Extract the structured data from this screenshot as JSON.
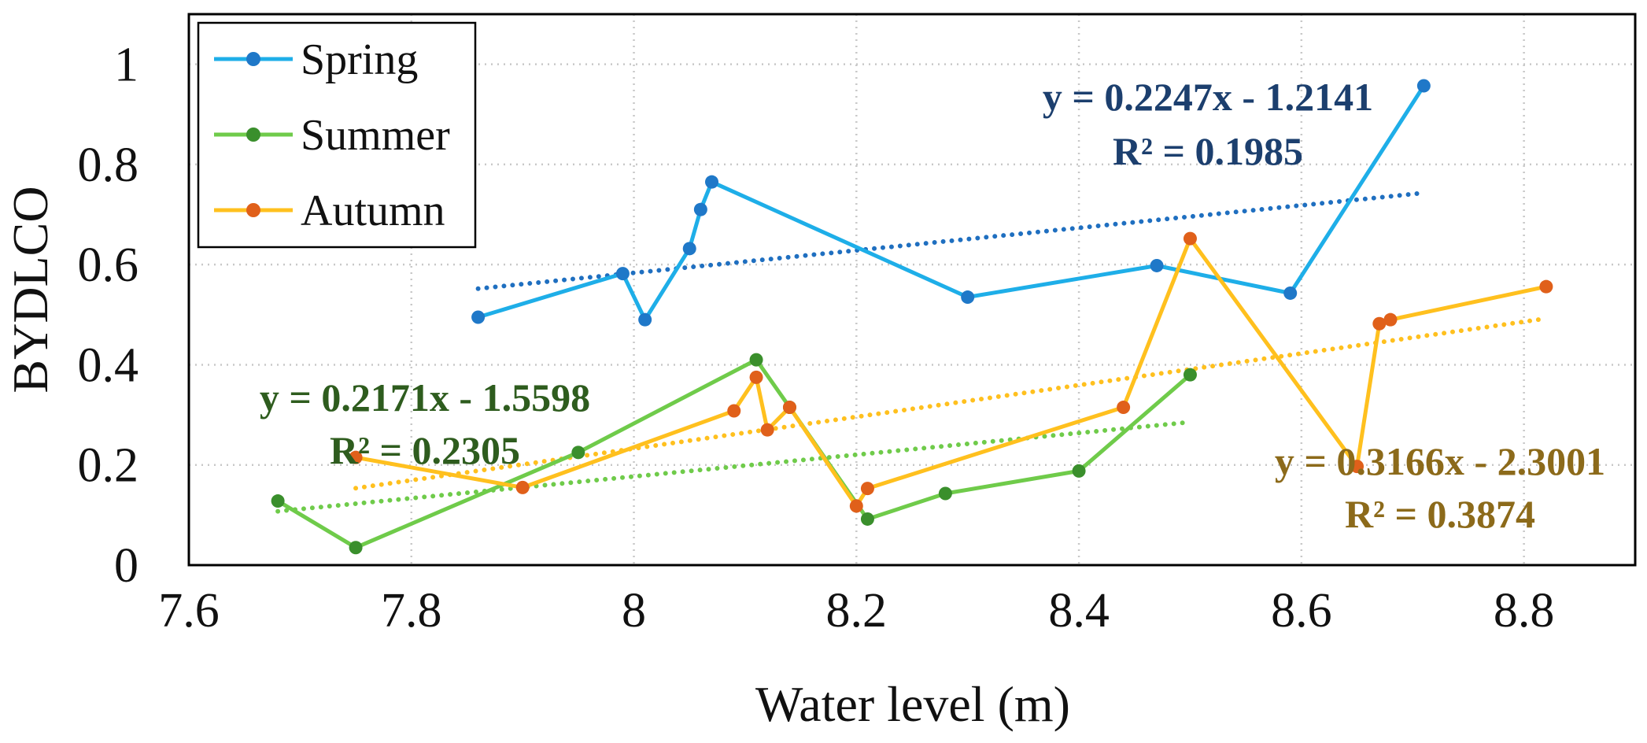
{
  "chart_data": {
    "type": "line",
    "xlabel": "Water level (m)",
    "ylabel": "BYDLCO",
    "xlim": [
      7.6,
      8.9
    ],
    "ylim": [
      0,
      1.1
    ],
    "x_ticks": [
      "7.6",
      "7.8",
      "8",
      "8.2",
      "8.4",
      "8.6",
      "8.8"
    ],
    "y_ticks": [
      "0",
      "0.2",
      "0.4",
      "0.6",
      "0.8",
      "1"
    ],
    "grid": true,
    "legend_position": "top-left",
    "series": [
      {
        "name": "Spring",
        "line_color": "#1EAEE8",
        "marker_color": "#1F78C8",
        "trend_color": "#1F6FC0",
        "points": [
          [
            7.86,
            0.495
          ],
          [
            7.99,
            0.582
          ],
          [
            8.01,
            0.49
          ],
          [
            8.05,
            0.632
          ],
          [
            8.06,
            0.71
          ],
          [
            8.07,
            0.765
          ],
          [
            8.3,
            0.535
          ],
          [
            8.47,
            0.598
          ],
          [
            8.59,
            0.543
          ],
          [
            8.71,
            0.957
          ]
        ],
        "trend": {
          "slope": 0.2247,
          "intercept": -1.2141,
          "x_range": [
            7.86,
            8.71
          ]
        },
        "equation": "y = 0.2247x - 1.2141",
        "r2": "R² = 0.1985",
        "label_color": "#1C3F6E"
      },
      {
        "name": "Summer",
        "line_color": "#6FCB4A",
        "marker_color": "#3A8F2C",
        "trend_color": "#6FCB4A",
        "points": [
          [
            7.68,
            0.128
          ],
          [
            7.75,
            0.035
          ],
          [
            7.95,
            0.225
          ],
          [
            8.11,
            0.41
          ],
          [
            8.14,
            0.315
          ],
          [
            8.21,
            0.092
          ],
          [
            8.28,
            0.143
          ],
          [
            8.4,
            0.188
          ],
          [
            8.5,
            0.38
          ]
        ],
        "trend": {
          "slope": 0.2171,
          "intercept": -1.5598,
          "x_range": [
            7.68,
            8.5
          ]
        },
        "equation": "y = 0.2171x - 1.5598",
        "r2": "R² = 0.2305",
        "label_color": "#2E5C1E"
      },
      {
        "name": "Autumn",
        "line_color": "#FFC01E",
        "marker_color": "#E0601A",
        "trend_color": "#FFC01E",
        "points": [
          [
            7.75,
            0.215
          ],
          [
            7.9,
            0.155
          ],
          [
            8.09,
            0.308
          ],
          [
            8.11,
            0.375
          ],
          [
            8.12,
            0.27
          ],
          [
            8.14,
            0.315
          ],
          [
            8.2,
            0.118
          ],
          [
            8.21,
            0.153
          ],
          [
            8.44,
            0.315
          ],
          [
            8.5,
            0.652
          ],
          [
            8.65,
            0.197
          ],
          [
            8.67,
            0.482
          ],
          [
            8.68,
            0.49
          ],
          [
            8.82,
            0.556
          ]
        ],
        "trend": {
          "slope": 0.3166,
          "intercept": -2.3001,
          "x_range": [
            7.75,
            8.82
          ]
        },
        "equation": "y = 0.3166x - 2.3001",
        "r2": "R² = 0.3874",
        "label_color": "#8C6A1A"
      }
    ]
  }
}
